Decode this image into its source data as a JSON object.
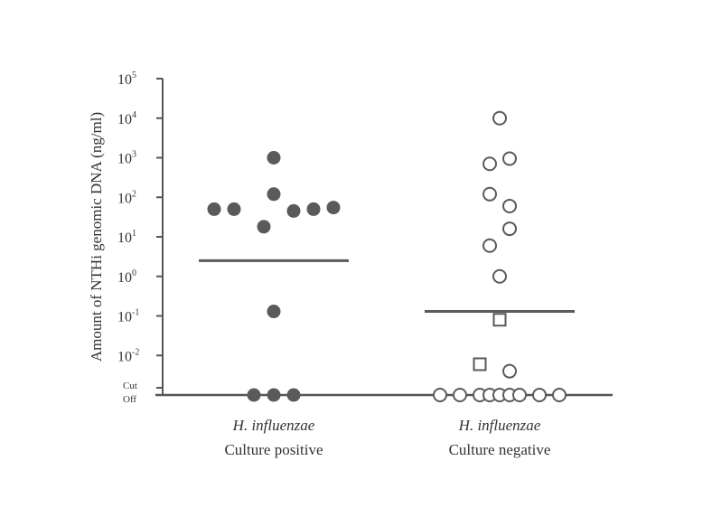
{
  "chart_data": {
    "type": "scatter",
    "ylabel": "Amount of NTHi genomic DNA (ng/ml)",
    "y_scale": "log",
    "ylim": [
      0.001,
      100000
    ],
    "y_ticks": [
      {
        "value": 100000,
        "base": "10",
        "exp": "5"
      },
      {
        "value": 10000,
        "base": "10",
        "exp": "4"
      },
      {
        "value": 1000,
        "base": "10",
        "exp": "3"
      },
      {
        "value": 100,
        "base": "10",
        "exp": "2"
      },
      {
        "value": 10,
        "base": "10",
        "exp": "1"
      },
      {
        "value": 1,
        "base": "10",
        "exp": "0"
      },
      {
        "value": 0.1,
        "base": "10",
        "exp": "-1"
      },
      {
        "value": 0.01,
        "base": "10",
        "exp": "-2"
      }
    ],
    "cutoff_label_line1": "Cut",
    "cutoff_label_line2": "Off",
    "categories": [
      {
        "species": "H. influenzae",
        "label": "Culture positive"
      },
      {
        "species": "H. influenzae",
        "label": "Culture negative"
      }
    ],
    "series": [
      {
        "category": 0,
        "marker": "filled-circle",
        "color": "#5a5a5a",
        "median": 2.5,
        "points": [
          {
            "y": 1000,
            "offset": 0
          },
          {
            "y": 120,
            "offset": 0
          },
          {
            "y": 50,
            "offset": -3
          },
          {
            "y": 50,
            "offset": -2
          },
          {
            "y": 45,
            "offset": 1
          },
          {
            "y": 50,
            "offset": 2
          },
          {
            "y": 55,
            "offset": 3
          },
          {
            "y": 18,
            "offset": -0.5
          },
          {
            "y": 0.13,
            "offset": 0
          },
          {
            "y": "cutoff",
            "offset": -1
          },
          {
            "y": "cutoff",
            "offset": 0
          },
          {
            "y": "cutoff",
            "offset": 1
          }
        ]
      },
      {
        "category": 1,
        "marker": "open-circle",
        "color": "#5a5a5a",
        "median": 0.13,
        "points": [
          {
            "y": 10000,
            "offset": 0
          },
          {
            "y": 700,
            "offset": -0.5
          },
          {
            "y": 950,
            "offset": 0.5
          },
          {
            "y": 120,
            "offset": -0.5
          },
          {
            "y": 60,
            "offset": 0.5
          },
          {
            "y": 16,
            "offset": 0.5
          },
          {
            "y": 6,
            "offset": -0.5
          },
          {
            "y": 1.0,
            "offset": 0
          },
          {
            "y": 0.004,
            "offset": 0.5
          },
          {
            "y": "cutoff",
            "offset": -3
          },
          {
            "y": "cutoff",
            "offset": -2
          },
          {
            "y": "cutoff",
            "offset": -1
          },
          {
            "y": "cutoff",
            "offset": -0.5
          },
          {
            "y": "cutoff",
            "offset": 0
          },
          {
            "y": "cutoff",
            "offset": 0.5
          },
          {
            "y": "cutoff",
            "offset": 1
          },
          {
            "y": "cutoff",
            "offset": 2
          },
          {
            "y": "cutoff",
            "offset": 3
          }
        ]
      },
      {
        "category": 1,
        "marker": "open-square",
        "color": "#5a5a5a",
        "points": [
          {
            "y": 0.08,
            "offset": 0
          },
          {
            "y": 0.006,
            "offset": -1
          }
        ]
      }
    ],
    "grid": false,
    "legend": "none"
  }
}
